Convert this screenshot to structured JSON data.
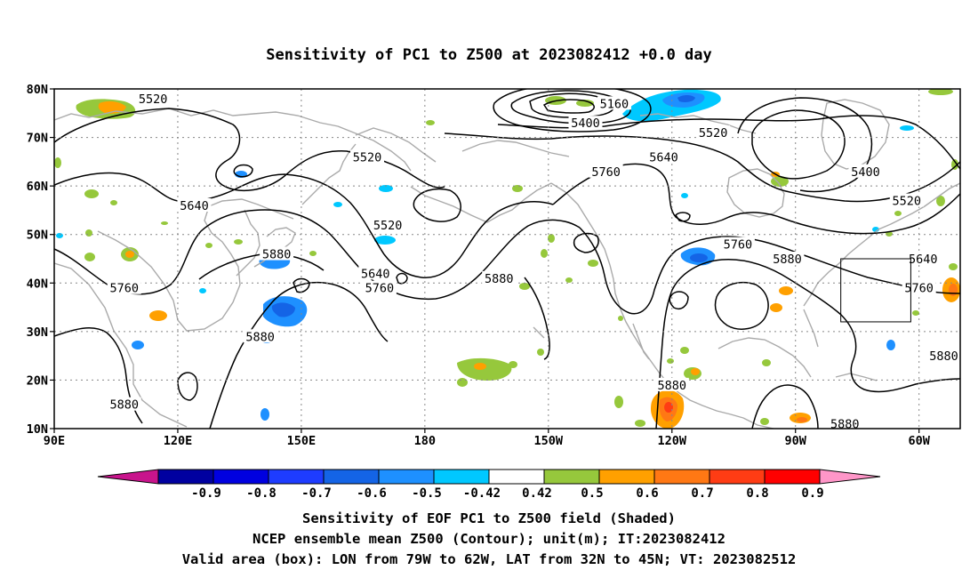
{
  "title": "Sensitivity of PC1 to Z500 at 2023082412 +0.0 day",
  "map": {
    "lat_labels": [
      "80N",
      "70N",
      "60N",
      "50N",
      "40N",
      "30N",
      "20N",
      "10N"
    ],
    "lon_labels": [
      "90E",
      "120E",
      "150E",
      "180",
      "150W",
      "120W",
      "90W",
      "60W"
    ],
    "lat_range": [
      10,
      80
    ],
    "lon_range_east": [
      90,
      310
    ],
    "valid_box": {
      "lon_w": -79,
      "lon_e": -62,
      "lat_s": 32,
      "lat_n": 45
    },
    "colors": {
      "coastline": "#aaaaaa",
      "contour": "#000000",
      "grid": "#888888"
    }
  },
  "contour_labels": [
    {
      "text": "5520",
      "lon": 114,
      "lat": 78
    },
    {
      "text": "5160",
      "lon": 226,
      "lat": 77
    },
    {
      "text": "5400",
      "lon": 219,
      "lat": 73
    },
    {
      "text": "5520",
      "lon": 250,
      "lat": 71
    },
    {
      "text": "5520",
      "lon": 166,
      "lat": 66
    },
    {
      "text": "5640",
      "lon": 238,
      "lat": 66
    },
    {
      "text": "5400",
      "lon": 287,
      "lat": 63
    },
    {
      "text": "5760",
      "lon": 224,
      "lat": 63
    },
    {
      "text": "5640",
      "lon": 124,
      "lat": 56
    },
    {
      "text": "5520",
      "lon": 297,
      "lat": 57
    },
    {
      "text": "5520",
      "lon": 171,
      "lat": 52
    },
    {
      "text": "5760",
      "lon": 256,
      "lat": 48
    },
    {
      "text": "5880",
      "lon": 144,
      "lat": 46
    },
    {
      "text": "5880",
      "lon": 268,
      "lat": 45
    },
    {
      "text": "5640",
      "lon": 301,
      "lat": 45
    },
    {
      "text": "5640",
      "lon": 168,
      "lat": 42
    },
    {
      "text": "5880",
      "lon": 198,
      "lat": 41
    },
    {
      "text": "5760",
      "lon": 107,
      "lat": 39
    },
    {
      "text": "5760",
      "lon": 169,
      "lat": 39
    },
    {
      "text": "5760",
      "lon": 300,
      "lat": 39
    },
    {
      "text": "5880",
      "lon": 140,
      "lat": 29
    },
    {
      "text": "5880",
      "lon": 306,
      "lat": 25
    },
    {
      "text": "5880",
      "lon": 240,
      "lat": 19
    },
    {
      "text": "5880",
      "lon": 107,
      "lat": 15
    },
    {
      "text": "5880",
      "lon": 282,
      "lat": 11
    }
  ],
  "colorbar": {
    "labels": [
      "-0.9",
      "-0.8",
      "-0.7",
      "-0.6",
      "-0.5",
      "-0.42",
      "0.42",
      "0.5",
      "0.6",
      "0.7",
      "0.8",
      "0.9"
    ],
    "colors": {
      "left_tip": "#c8148c",
      "segments": [
        "#0000a0",
        "#0000e0",
        "#1e3cff",
        "#1464e6",
        "#1e90ff",
        "#00c8ff",
        "#ffffff",
        "#96c83c",
        "#ffa000",
        "#ff7814",
        "#ff3c14",
        "#ff0000"
      ],
      "right_tip": "#ff96c8"
    }
  },
  "footer": {
    "line1": "Sensitivity of EOF PC1 to Z500 field (Shaded)",
    "line2": "NCEP ensemble mean Z500 (Contour); unit(m); IT:2023082412",
    "line3": "Valid area (box): LON from 79W to 62W, LAT from 32N to 45N; VT: 2023082512"
  }
}
